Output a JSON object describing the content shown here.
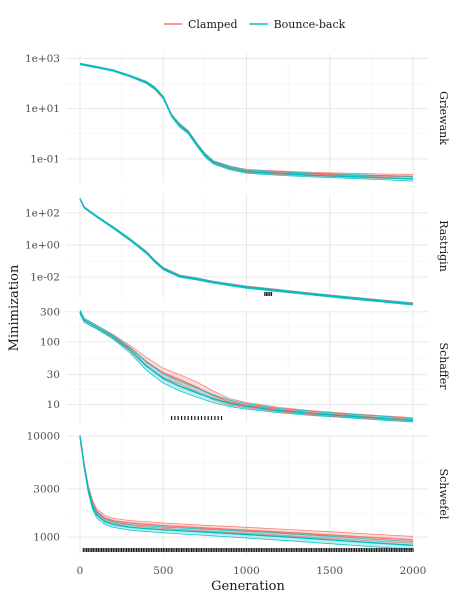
{
  "chart_data": {
    "type": "line",
    "xlabel": "Generation",
    "ylabel": "Minimization",
    "xlim": [
      0,
      2000
    ],
    "xticks": [
      0,
      500,
      1000,
      1500,
      2000
    ],
    "legend_position": "top",
    "grid": true,
    "series_meta": [
      {
        "name": "Clamped",
        "color": "#F8766D"
      },
      {
        "name": "Bounce-back",
        "color": "#00BFC4"
      }
    ],
    "panels": [
      {
        "strip": "Griewank",
        "y_scale": "log",
        "ylim": [
          0.012,
          1500
        ],
        "yticks": [
          0.1,
          10,
          1000
        ],
        "ytick_labels": [
          "1e-01",
          "1e+01",
          "1e+03"
        ],
        "x": [
          0,
          100,
          200,
          300,
          400,
          450,
          500,
          550,
          600,
          650,
          700,
          750,
          800,
          900,
          1000,
          1200,
          1400,
          1600,
          1800,
          2000
        ],
        "series": [
          {
            "name": "Clamped",
            "mean": [
              600,
              450,
              330,
              200,
              110,
              65,
              28,
              5.5,
              2.2,
              1.2,
              0.4,
              0.15,
              0.075,
              0.045,
              0.033,
              0.028,
              0.025,
              0.023,
              0.021,
              0.02
            ],
            "lower": [
              560,
              420,
              310,
              185,
              100,
              58,
              25,
              5.0,
              1.9,
              1.05,
              0.35,
              0.13,
              0.066,
              0.038,
              0.029,
              0.024,
              0.021,
              0.019,
              0.017,
              0.016
            ],
            "upper": [
              640,
              480,
              350,
              215,
              120,
              72,
              31,
              6.0,
              2.5,
              1.35,
              0.45,
              0.17,
              0.085,
              0.052,
              0.038,
              0.033,
              0.029,
              0.027,
              0.025,
              0.024
            ]
          },
          {
            "name": "Bounce-back",
            "mean": [
              600,
              450,
              330,
              200,
              110,
              65,
              28,
              5.2,
              2.1,
              1.15,
              0.38,
              0.14,
              0.072,
              0.043,
              0.031,
              0.026,
              0.022,
              0.02,
              0.018,
              0.016
            ],
            "lower": [
              560,
              420,
              310,
              185,
              100,
              58,
              25,
              4.7,
              1.8,
              1.0,
              0.33,
              0.12,
              0.063,
              0.037,
              0.027,
              0.022,
              0.019,
              0.017,
              0.015,
              0.013
            ],
            "upper": [
              640,
              480,
              350,
              215,
              120,
              72,
              31,
              5.7,
              2.4,
              1.3,
              0.43,
              0.16,
              0.082,
              0.05,
              0.036,
              0.031,
              0.027,
              0.024,
              0.022,
              0.02
            ]
          }
        ],
        "signif_marks": []
      },
      {
        "strip": "Rastrigin",
        "y_scale": "log",
        "ylim": [
          0.0005,
          1500
        ],
        "yticks": [
          0.01,
          1,
          100
        ],
        "ytick_labels": [
          "1e-02",
          "1e+00",
          "1e+02"
        ],
        "x": [
          0,
          25,
          100,
          200,
          300,
          400,
          450,
          500,
          600,
          700,
          800,
          1000,
          1200,
          1400,
          1600,
          1800,
          2000
        ],
        "series": [
          {
            "name": "Clamped",
            "mean": [
              750,
              220,
              60,
              12,
              2.2,
              0.35,
              0.1,
              0.035,
              0.012,
              0.008,
              0.005,
              0.0025,
              0.0015,
              0.0009,
              0.00055,
              0.00035,
              0.00022
            ],
            "lower": [
              700,
              200,
              54,
              10.5,
              1.9,
              0.3,
              0.085,
              0.03,
              0.0105,
              0.007,
              0.0044,
              0.0022,
              0.0013,
              0.0008,
              0.00048,
              0.00031,
              0.00019
            ],
            "upper": [
              800,
              240,
              66,
              13.5,
              2.5,
              0.4,
              0.115,
              0.04,
              0.0135,
              0.009,
              0.0056,
              0.0028,
              0.0017,
              0.001,
              0.00062,
              0.00039,
              0.00025
            ]
          },
          {
            "name": "Bounce-back",
            "mean": [
              750,
              220,
              60,
              12,
              2.2,
              0.33,
              0.095,
              0.033,
              0.011,
              0.0075,
              0.0048,
              0.0023,
              0.0014,
              0.00085,
              0.00052,
              0.00033,
              0.00021
            ],
            "lower": [
              700,
              200,
              54,
              10.5,
              1.9,
              0.28,
              0.082,
              0.028,
              0.0096,
              0.0066,
              0.0042,
              0.002,
              0.0012,
              0.00075,
              0.00045,
              0.00029,
              0.00018
            ],
            "upper": [
              800,
              240,
              66,
              13.5,
              2.5,
              0.38,
              0.11,
              0.038,
              0.0125,
              0.0085,
              0.0054,
              0.0026,
              0.0016,
              0.00095,
              0.00059,
              0.00037,
              0.00024
            ]
          }
        ],
        "signif_marks": [
          1110,
          1120,
          1130,
          1140,
          1150
        ]
      },
      {
        "strip": "Schaffer",
        "y_scale": "log",
        "ylim": [
          5.3,
          320
        ],
        "yticks": [
          10,
          30,
          100,
          300
        ],
        "ytick_labels": [
          "10",
          "30",
          "100",
          "300"
        ],
        "x": [
          0,
          25,
          100,
          200,
          300,
          400,
          500,
          600,
          700,
          800,
          900,
          1000,
          1200,
          1400,
          1600,
          1800,
          2000
        ],
        "series": [
          {
            "name": "Clamped",
            "mean": [
              300,
              220,
              170,
              120,
              80,
              48,
              32,
              25,
              19,
              14,
              11,
              9.8,
              8.3,
              7.4,
              6.8,
              6.2,
              5.7
            ],
            "lower": [
              280,
              205,
              160,
              112,
              72,
              40,
              27,
              21,
              16,
              12,
              9.8,
              8.9,
              7.7,
              6.9,
              6.3,
              5.8,
              5.3
            ],
            "upper": [
              320,
              235,
              182,
              130,
              88,
              56,
              38,
              30,
              23,
              16.5,
              12.5,
              10.8,
              9.0,
              8.0,
              7.3,
              6.7,
              6.2
            ]
          },
          {
            "name": "Bounce-back",
            "mean": [
              300,
              220,
              170,
              118,
              74,
              41,
              26,
              19.5,
              15.5,
              12.5,
              10.5,
              9.4,
              8.0,
              7.2,
              6.6,
              6.1,
              5.6
            ],
            "lower": [
              280,
              205,
              160,
              110,
              67,
              35,
              22,
              16.5,
              13.2,
              10.8,
              9.3,
              8.5,
              7.4,
              6.7,
              6.2,
              5.7,
              5.3
            ],
            "upper": [
              320,
              235,
              182,
              126,
              82,
              48,
              31,
              23.5,
              18.5,
              14.5,
              11.8,
              10.4,
              8.7,
              7.8,
              7.1,
              6.6,
              6.0
            ]
          }
        ],
        "signif_marks": [
          550,
          570,
          590,
          610,
          630,
          650,
          670,
          690,
          710,
          730,
          750,
          770,
          790,
          810,
          830,
          850
        ]
      },
      {
        "strip": "Schwefel",
        "y_scale": "log",
        "ylim": [
          680,
          10500
        ],
        "yticks": [
          1000,
          3000,
          10000
        ],
        "ytick_labels": [
          "1000",
          "3000",
          "10000"
        ],
        "x": [
          0,
          25,
          50,
          75,
          100,
          150,
          200,
          300,
          500,
          750,
          1000,
          1250,
          1500,
          1750,
          2000
        ],
        "series": [
          {
            "name": "Clamped",
            "mean": [
              10000,
              5200,
              3100,
              2200,
              1800,
              1550,
              1450,
              1380,
              1300,
              1230,
              1170,
              1110,
              1050,
              990,
              940
            ],
            "lower": [
              9800,
              5000,
              2950,
              2080,
              1700,
              1460,
              1370,
              1300,
              1220,
              1150,
              1090,
              1030,
              970,
              915,
              865
            ],
            "upper": [
              10200,
              5400,
              3250,
              2320,
              1900,
              1640,
              1530,
              1460,
              1380,
              1310,
              1250,
              1190,
              1130,
              1070,
              1015
            ]
          },
          {
            "name": "Bounce-back",
            "mean": [
              10000,
              5000,
              2900,
              2000,
              1650,
              1420,
              1330,
              1250,
              1180,
              1120,
              1060,
              1000,
              940,
              880,
              830
            ],
            "lower": [
              9800,
              4800,
              2750,
              1880,
              1550,
              1330,
              1250,
              1170,
              1100,
              1040,
              980,
              920,
              860,
              805,
              755
            ],
            "upper": [
              10200,
              5200,
              3050,
              2120,
              1750,
              1510,
              1410,
              1330,
              1260,
              1200,
              1140,
              1080,
              1020,
              955,
              905
            ]
          }
        ],
        "signif_marks": "every-10-from-20-to-2000"
      }
    ]
  }
}
